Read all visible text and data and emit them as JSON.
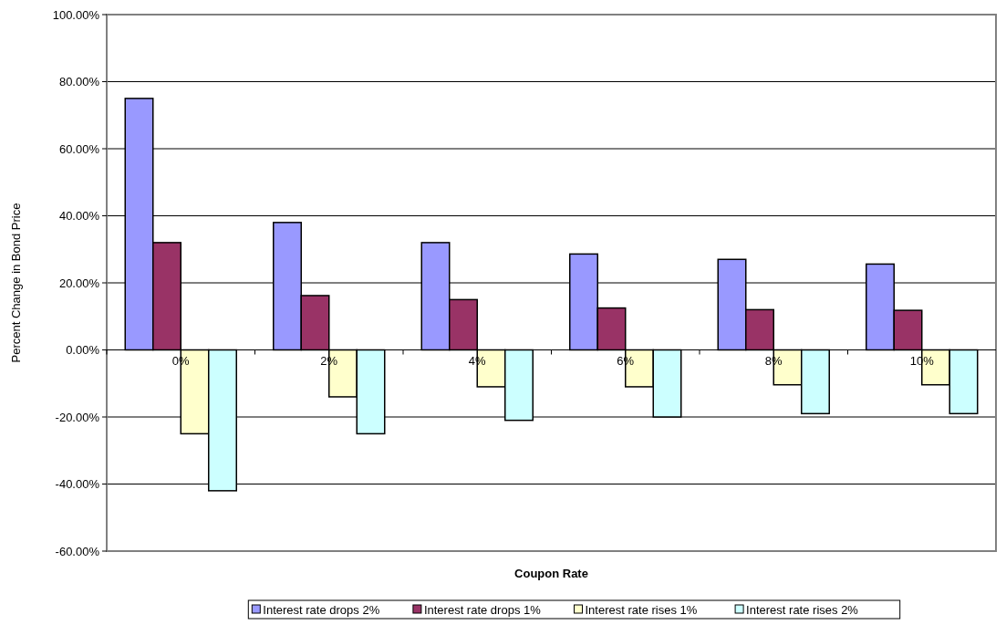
{
  "chart_data": {
    "type": "bar",
    "xlabel": "Coupon Rate",
    "ylabel": "Percent Change in Bond Price",
    "categories": [
      "0%",
      "2%",
      "4%",
      "6%",
      "8%",
      "10%"
    ],
    "series": [
      {
        "name": "Interest rate drops 2%",
        "color": "#9999ff",
        "values": [
          75,
          38,
          32,
          28.6,
          27,
          25.6
        ]
      },
      {
        "name": "Interest rate drops 1%",
        "color": "#993366",
        "values": [
          32,
          16.2,
          15,
          12.5,
          12,
          11.8
        ]
      },
      {
        "name": "Interest rate rises 1%",
        "color": "#ffffcc",
        "values": [
          -25,
          -14,
          -11,
          -11,
          -10.4,
          -10.4
        ]
      },
      {
        "name": "Interest rate rises 2%",
        "color": "#ccffff",
        "values": [
          -42,
          -25,
          -21,
          -20,
          -19,
          -19
        ]
      }
    ],
    "ylim": [
      -60,
      100
    ],
    "yticks": [
      {
        "value": -60,
        "label": "-60.00%"
      },
      {
        "value": -40,
        "label": "-40.00%"
      },
      {
        "value": -20,
        "label": "-20.00%"
      },
      {
        "value": 0,
        "label": "0.00%"
      },
      {
        "value": 20,
        "label": "20.00%"
      },
      {
        "value": 40,
        "label": "40.00%"
      },
      {
        "value": 60,
        "label": "60.00%"
      },
      {
        "value": 80,
        "label": "80.00%"
      },
      {
        "value": 100,
        "label": "100.00%"
      }
    ],
    "grid": "y",
    "legend": "bottom"
  }
}
